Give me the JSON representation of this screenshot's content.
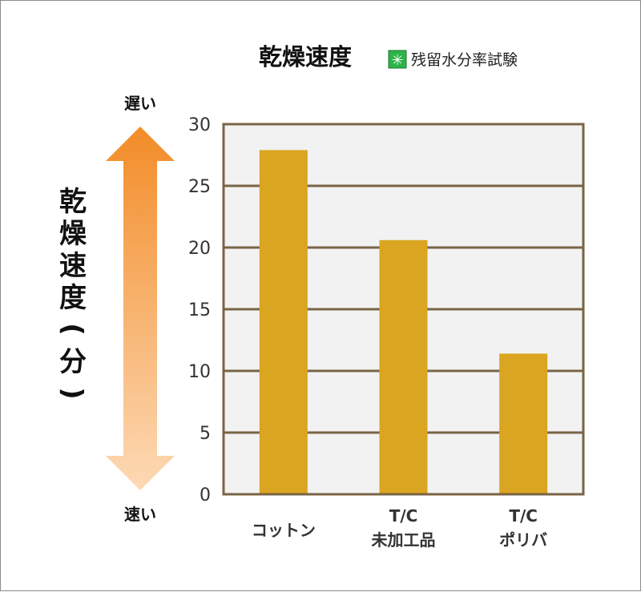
{
  "chart_data": {
    "type": "bar",
    "title": "乾燥速度",
    "legend": {
      "marker": "✳",
      "label": "残留水分率試験",
      "marker_color": "#2db34a"
    },
    "ylabel": [
      "乾",
      "燥",
      "速",
      "度",
      "(",
      "分",
      ")"
    ],
    "arrow_top_label": "遅い",
    "arrow_bottom_label": "速い",
    "ylim": [
      0,
      30
    ],
    "yticks": [
      "0",
      "5",
      "10",
      "15",
      "20",
      "25",
      "30"
    ],
    "grid": true,
    "categories": [
      {
        "lines": [
          "コットン"
        ]
      },
      {
        "lines": [
          "T/C",
          "未加工品"
        ]
      },
      {
        "lines": [
          "T/C",
          "ポリバ"
        ]
      }
    ],
    "values": [
      27.9,
      20.6,
      11.4
    ],
    "colors": {
      "bar": "#daa520",
      "plot_bg": "#f2f2f2",
      "axis": "#7a6446",
      "arrow_top": "#f28c28",
      "arrow_bottom": "#fdd9b5"
    }
  }
}
